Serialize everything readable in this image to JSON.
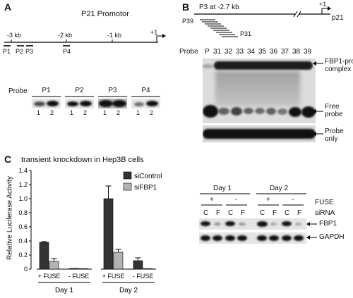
{
  "panels": {
    "A": {
      "letter": "A",
      "title": "P21 Promotor",
      "map_labels": [
        "-3 kb",
        "-2 kb",
        "-1 kb",
        "+1"
      ],
      "probe_sites": [
        "P1",
        "P2",
        "P3",
        "P4"
      ],
      "gel": {
        "row_label": "Probe",
        "probes": [
          "P1",
          "P2",
          "P3",
          "P4"
        ],
        "lane_labels": [
          "1",
          "2"
        ]
      }
    },
    "B": {
      "letter": "B",
      "header": "P3 at -2.7 kb",
      "start_label": "+1",
      "gene_label": "p21",
      "oligo_first": "P39",
      "oligo_last": "P31",
      "probe_row_label": "Probe",
      "lanes": [
        "P",
        "31",
        "32",
        "33",
        "34",
        "35",
        "36",
        "37",
        "38",
        "39"
      ],
      "annotations": {
        "complex": "FBP1-probe\ncomplex",
        "free": "Free\nprobe",
        "probe_only": "Probe\nonly"
      }
    },
    "C": {
      "letter": "C",
      "title": "transient knockdown in Hep3B cells",
      "western": {
        "days": [
          "Day 1",
          "Day 2"
        ],
        "fuse_label": "FUSE",
        "fuse_states": [
          "+",
          "-",
          "+",
          "-"
        ],
        "sirna_label": "siRNA",
        "sirna_lanes": [
          "C",
          "F",
          "C",
          "F",
          "C",
          "F",
          "C",
          "F"
        ],
        "rows": [
          "FBP1",
          "GAPDH"
        ]
      }
    }
  },
  "chart_data": {
    "type": "bar",
    "title": "transient knockdown in Hep3B cells",
    "ylabel": "Relative Luciferase Activity",
    "xlabel": "",
    "ylim": [
      0,
      1.4
    ],
    "yticks": [
      "0",
      "0.2",
      "0.4",
      "0.6",
      "0.8",
      "1.0",
      "1.2",
      "1.4"
    ],
    "groups": [
      {
        "day": "Day 1",
        "categories": [
          "+ FUSE",
          "- FUSE"
        ]
      },
      {
        "day": "Day 2",
        "categories": [
          "+ FUSE",
          "- FUSE"
        ]
      }
    ],
    "series": [
      {
        "name": "siControl",
        "color": "#333333",
        "values": [
          0.38,
          0.01,
          1.0,
          0.12
        ],
        "errors": [
          0.01,
          0.0,
          0.18,
          0.04
        ]
      },
      {
        "name": "siFBP1",
        "color": "#b3b3b3",
        "values": [
          0.11,
          0.0,
          0.24,
          0.0
        ],
        "errors": [
          0.04,
          0.0,
          0.04,
          0.0
        ]
      }
    ],
    "legend": "top-right"
  }
}
